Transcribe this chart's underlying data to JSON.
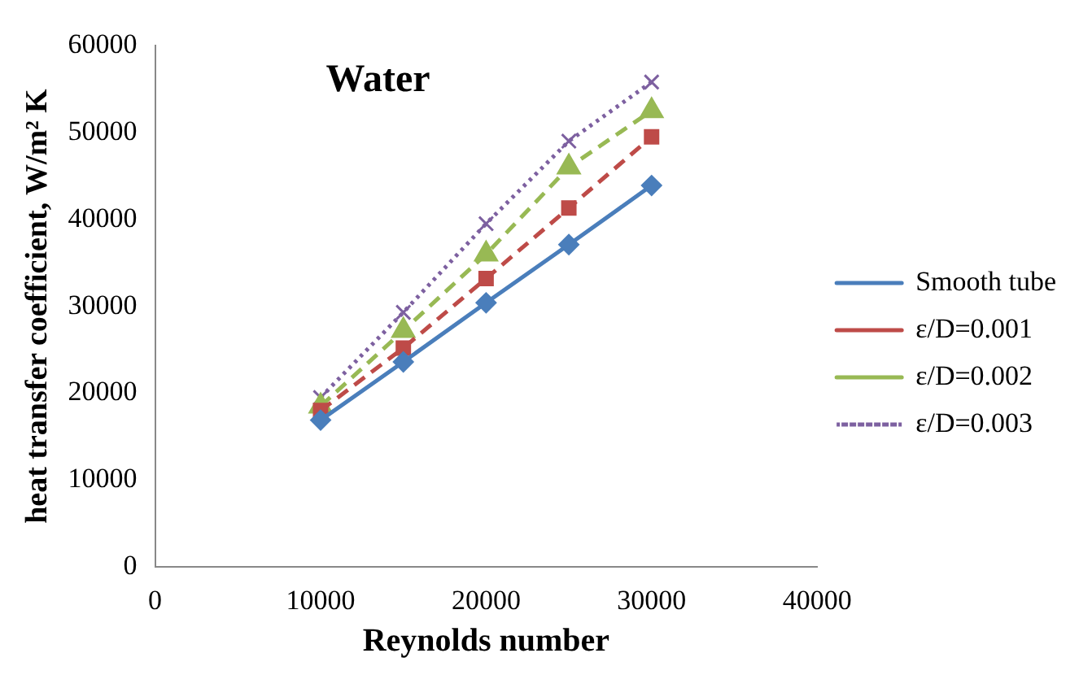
{
  "chart_data": {
    "type": "line",
    "title": "Water",
    "xlabel": "Reynolds number",
    "ylabel": "heat transfer coefficient, W/m² K",
    "x": [
      10000,
      15000,
      20000,
      25000,
      30000
    ],
    "xlim": [
      0,
      40000
    ],
    "xticks": [
      0,
      10000,
      20000,
      30000,
      40000
    ],
    "ylim": [
      0,
      60000
    ],
    "yticks": [
      0,
      10000,
      20000,
      30000,
      40000,
      50000,
      60000
    ],
    "grid": false,
    "legend": "right",
    "series": [
      {
        "name": "Smooth tube",
        "color": "#4a7ebb",
        "values": [
          16900,
          23600,
          30400,
          37100,
          43900
        ],
        "marker": "diamond",
        "line_style": "solid"
      },
      {
        "name": "ε/D=0.001",
        "color": "#be4b48",
        "values": [
          18000,
          25200,
          33200,
          41300,
          49500
        ],
        "marker": "square",
        "line_style": "dashed"
      },
      {
        "name": "ε/D=0.002",
        "color": "#98b954",
        "values": [
          18500,
          27200,
          36000,
          46000,
          52500
        ],
        "marker": "triangle",
        "line_style": "dashed"
      },
      {
        "name": "ε/D=0.003",
        "color": "#7d60a0",
        "values": [
          19500,
          29300,
          39500,
          49000,
          55800
        ],
        "marker": "cross",
        "line_style": "dotted"
      }
    ]
  }
}
